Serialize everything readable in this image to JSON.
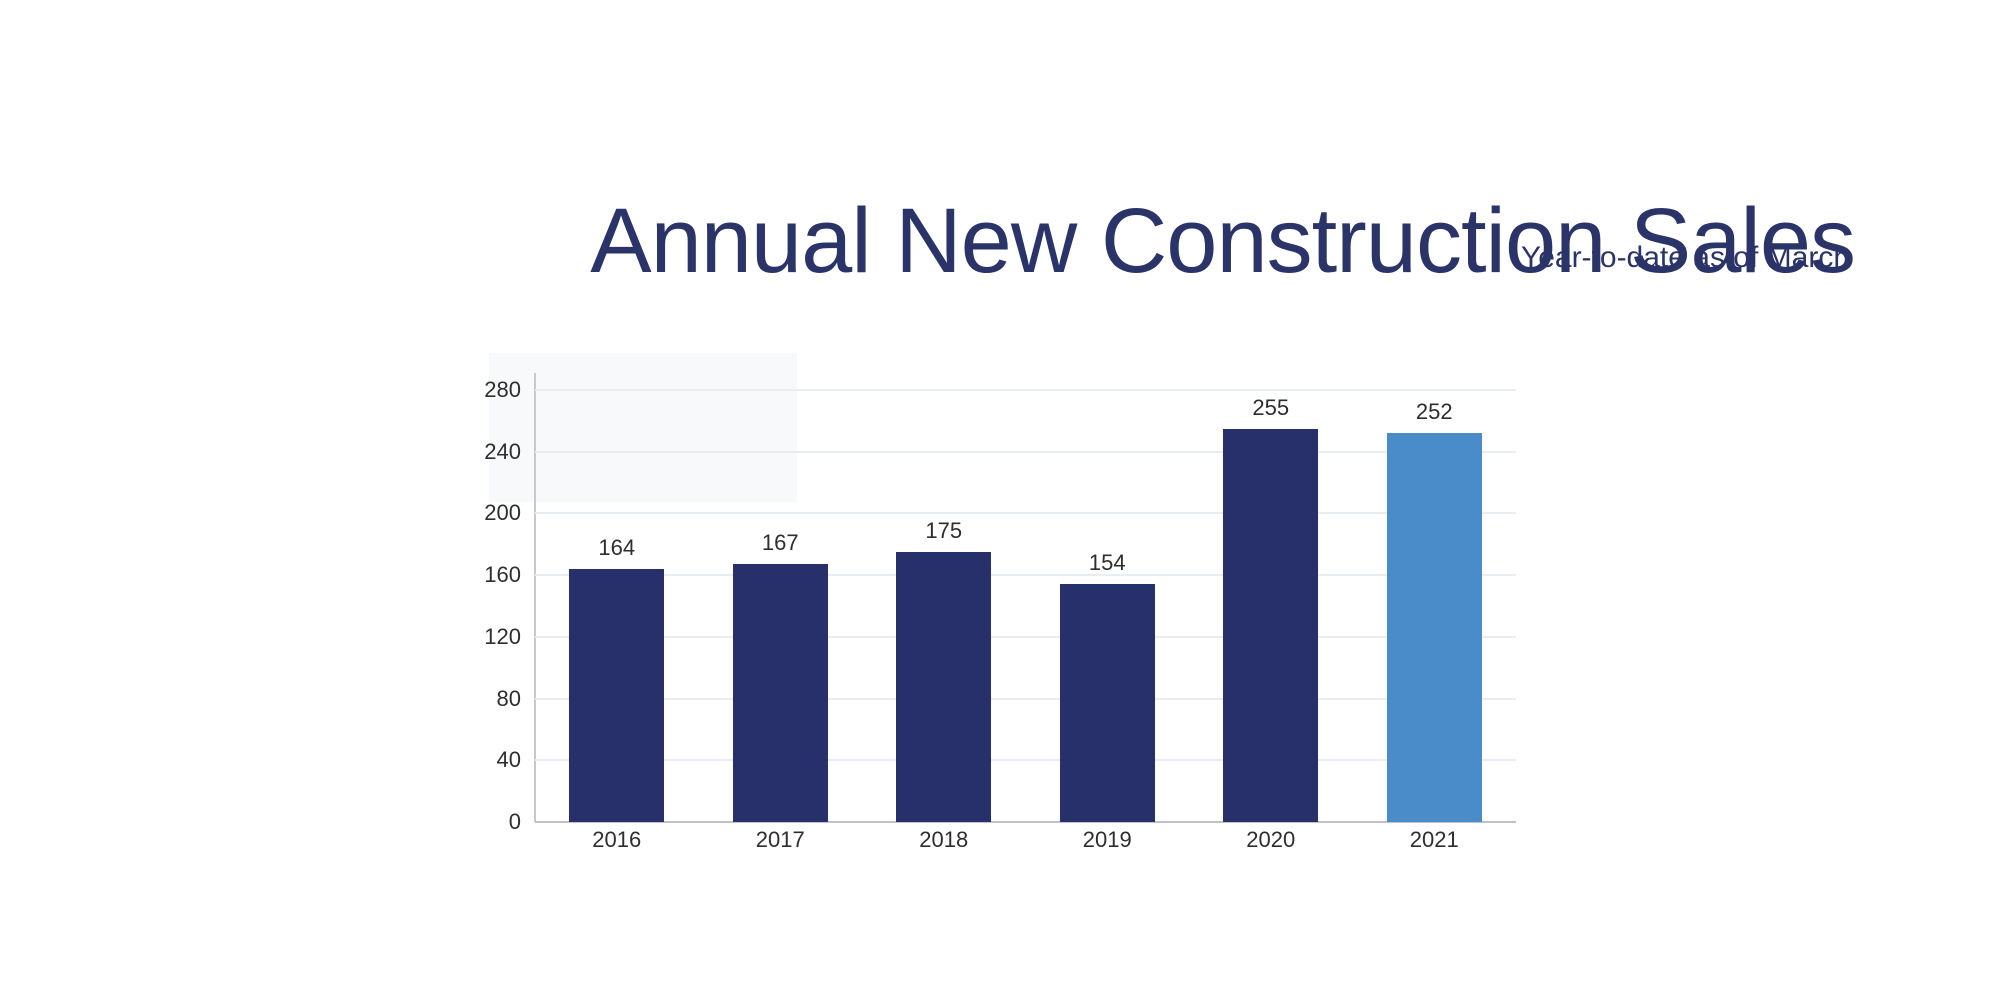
{
  "header": {
    "title": "Annual New Construction Sales",
    "subtitle": "Year-to-date as of March"
  },
  "colors": {
    "title_text": "#2b3468",
    "bar_default": "#28306b",
    "bar_highlight": "#4a8cca",
    "gridline": "#e9edf3",
    "axis_line": "#c7c8cd",
    "tick_text": "#2e2e2e"
  },
  "chart_data": {
    "type": "bar",
    "title": "Annual New Construction Sales",
    "subtitle": "Year-to-date as of March",
    "categories": [
      "2016",
      "2017",
      "2018",
      "2019",
      "2020",
      "2021"
    ],
    "values": [
      164,
      167,
      175,
      154,
      255,
      252
    ],
    "value_labels": [
      "164",
      "167",
      "175",
      "154",
      "255",
      "252"
    ],
    "bar_colors": [
      "#28306b",
      "#28306b",
      "#28306b",
      "#28306b",
      "#28306b",
      "#4a8cca"
    ],
    "xlabel": "",
    "ylabel": "",
    "ylim": [
      0,
      290
    ],
    "yticks": [
      0,
      40,
      80,
      120,
      160,
      200,
      240,
      280
    ],
    "ytick_labels": [
      "0",
      "40",
      "80",
      "120",
      "160",
      "200",
      "240",
      "280"
    ],
    "grid": true,
    "legend": false,
    "highlighted_category": "2021"
  }
}
